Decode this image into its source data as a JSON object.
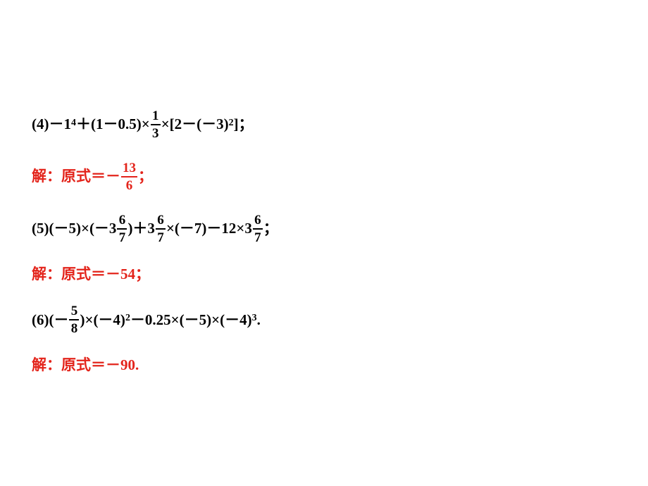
{
  "colors": {
    "text_black": "#000000",
    "text_red": "#e3241b",
    "background": "#ffffff"
  },
  "typography": {
    "base_size": 21,
    "sup_size": 14,
    "frac_size": 19,
    "weight": "bold",
    "font_family": "SimSun"
  },
  "lines": [
    {
      "color": "black",
      "prefix": "(4)－1",
      "sup1": "4",
      "mid1": "＋(1－0.5)×",
      "frac1": {
        "num": "1",
        "den": "3"
      },
      "mid2": "×[2－(－3)",
      "sup2": "2",
      "suffix": "]；"
    },
    {
      "color": "red",
      "prefix": "解：原式＝－",
      "frac1": {
        "num": "13",
        "den": "6"
      },
      "suffix": "；"
    },
    {
      "color": "black",
      "prefix": "(5)(－5)×(－3",
      "frac1": {
        "num": "6",
        "den": "7"
      },
      "mid1": ")＋3",
      "frac2": {
        "num": "6",
        "den": "7"
      },
      "mid2": "×(－7)－12×3",
      "frac3": {
        "num": "6",
        "den": "7"
      },
      "suffix": "；"
    },
    {
      "color": "red",
      "text": "解：原式＝－54；"
    },
    {
      "color": "black",
      "prefix": "(6)(－",
      "frac1": {
        "num": "5",
        "den": "8"
      },
      "mid1": ")×(－4)",
      "sup1": "2",
      "mid2": "－0.25×(－5)×(－4)",
      "sup2": "3",
      "suffix": "."
    },
    {
      "color": "red",
      "text": "解：原式＝－90."
    }
  ]
}
